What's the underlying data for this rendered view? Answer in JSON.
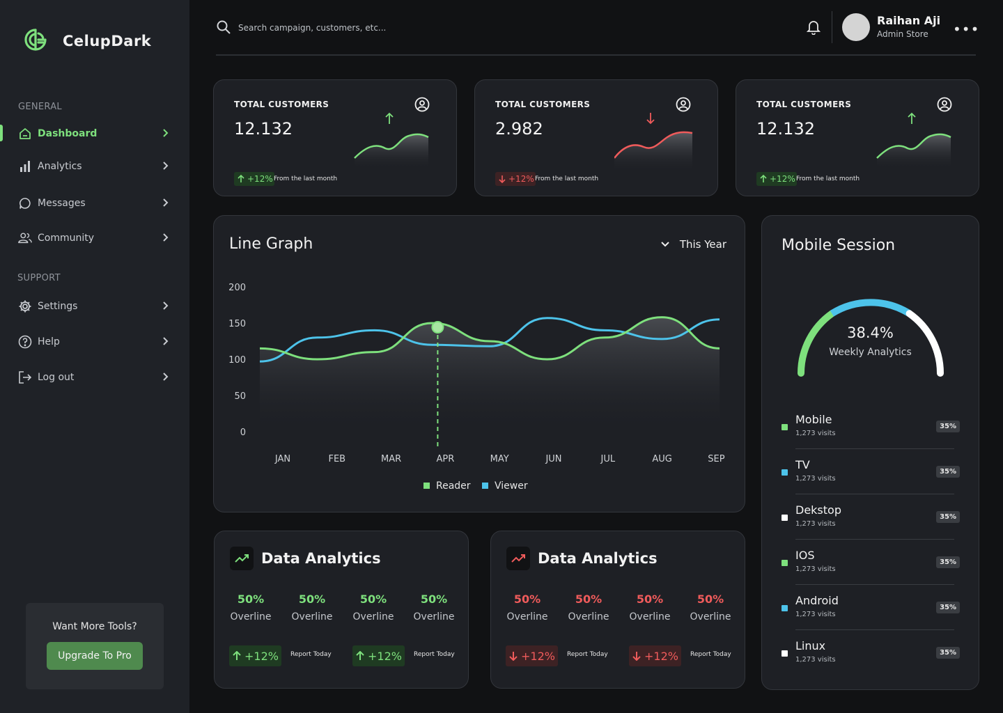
{
  "brand": {
    "name": "CelupDark"
  },
  "sidebar": {
    "section_general": "GENERAL",
    "section_support": "SUPPORT",
    "items": [
      {
        "label": "Dashboard",
        "icon": "home-icon",
        "active": true
      },
      {
        "label": "Analytics",
        "icon": "bar-chart-icon"
      },
      {
        "label": "Messages",
        "icon": "chat-bubble-icon"
      },
      {
        "label": "Community",
        "icon": "users-icon"
      },
      {
        "label": "Settings",
        "icon": "gear-icon"
      },
      {
        "label": "Help",
        "icon": "help-circle-icon"
      },
      {
        "label": "Log out",
        "icon": "logout-icon"
      }
    ],
    "promo": {
      "text": "Want More Tools?",
      "button": "Upgrade To Pro"
    }
  },
  "header": {
    "search_placeholder": "Search campaign, customers, etc...",
    "user_name": "Raihan Aji",
    "user_role": "Admin Store",
    "more_label": "•••"
  },
  "stats": [
    {
      "title": "TOTAL CUSTOMERS",
      "value": "12.132",
      "trend": "up",
      "change": "+12%",
      "footnote": "From the last month"
    },
    {
      "title": "TOTAL CUSTOMERS",
      "value": "2.982",
      "trend": "down",
      "change": "+12%",
      "footnote": "From the last month"
    },
    {
      "title": "TOTAL CUSTOMERS",
      "value": "12.132",
      "trend": "up",
      "change": "+12%",
      "footnote": "From the last month"
    }
  ],
  "line_graph": {
    "title": "Line Graph",
    "filter": "This Year"
  },
  "chart_data": {
    "type": "line",
    "categories": [
      "JAN",
      "FEB",
      "MAR",
      "APR",
      "MAY",
      "JUN",
      "JUL",
      "AUG",
      "SEP"
    ],
    "yticks": [
      "200",
      "150",
      "100",
      "50",
      "0"
    ],
    "ylim": [
      0,
      200
    ],
    "highlight_category": "APR",
    "series": [
      {
        "name": "Reader",
        "color": "#7ee07d",
        "values": [
          115,
          100,
          110,
          150,
          125,
          100,
          130,
          158,
          115
        ]
      },
      {
        "name": "Viewer",
        "color": "#4dc3ea",
        "values": [
          97,
          130,
          140,
          120,
          118,
          157,
          140,
          128,
          155
        ]
      }
    ]
  },
  "mobile_session": {
    "title": "Mobile Session",
    "gauge_value": "38.4%",
    "gauge_label": "Weekly Analytics",
    "items": [
      {
        "name": "Mobile",
        "visits": "1,273 visits",
        "pct": "35%",
        "color": "#7ee07d"
      },
      {
        "name": "TV",
        "visits": "1,273 visits",
        "pct": "35%",
        "color": "#4dc3ea"
      },
      {
        "name": "Dekstop",
        "visits": "1,273 visits",
        "pct": "35%",
        "color": "#ffffff"
      },
      {
        "name": "IOS",
        "visits": "1,273 visits",
        "pct": "35%",
        "color": "#7ee07d"
      },
      {
        "name": "Android",
        "visits": "1,273 visits",
        "pct": "35%",
        "color": "#4dc3ea"
      },
      {
        "name": "Linux",
        "visits": "1,273 visits",
        "pct": "35%",
        "color": "#ffffff"
      }
    ]
  },
  "data_analytics": [
    {
      "title": "Data Analytics",
      "trend": "up",
      "metrics": [
        {
          "pct": "50%",
          "label": "Overline"
        },
        {
          "pct": "50%",
          "label": "Overline"
        },
        {
          "pct": "50%",
          "label": "Overline"
        },
        {
          "pct": "50%",
          "label": "Overline"
        }
      ],
      "reports": [
        {
          "change": "+12%",
          "label": "Report Today"
        },
        {
          "change": "+12%",
          "label": "Report Today"
        }
      ]
    },
    {
      "title": "Data Analytics",
      "trend": "down",
      "metrics": [
        {
          "pct": "50%",
          "label": "Overline"
        },
        {
          "pct": "50%",
          "label": "Overline"
        },
        {
          "pct": "50%",
          "label": "Overline"
        },
        {
          "pct": "50%",
          "label": "Overline"
        }
      ],
      "reports": [
        {
          "change": "+12%",
          "label": "Report Today"
        },
        {
          "change": "+12%",
          "label": "Report Today"
        }
      ]
    }
  ]
}
